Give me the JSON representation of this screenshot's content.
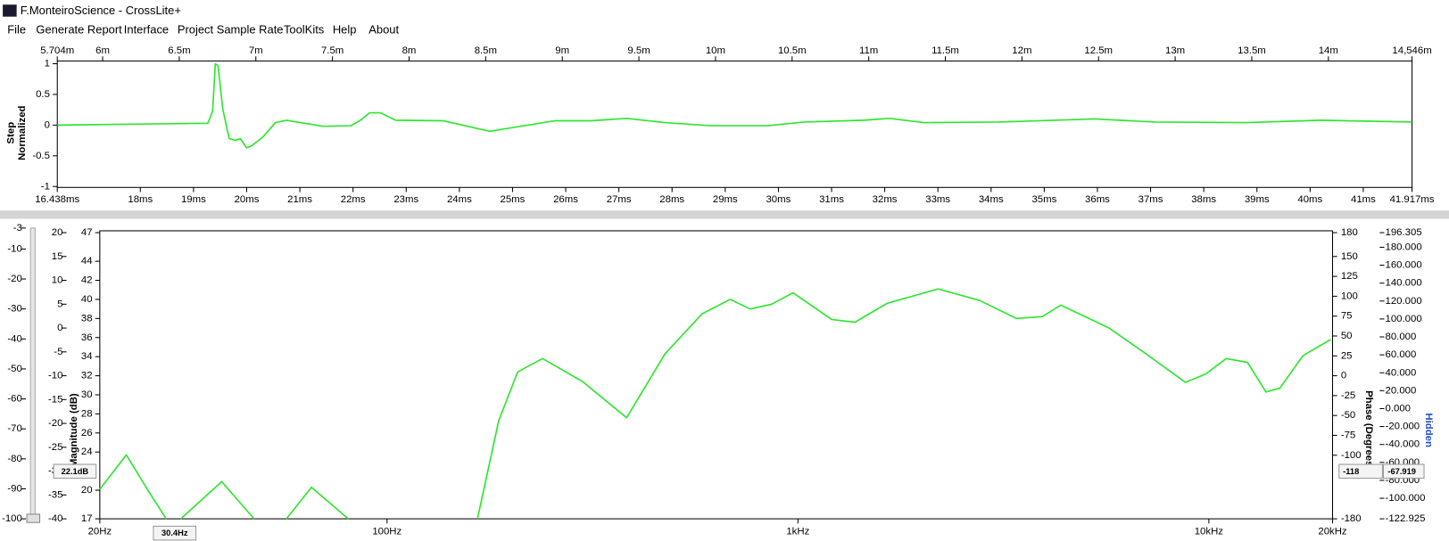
{
  "window": {
    "title": "F.MonteiroScience - CrossLite+"
  },
  "menu": [
    "File",
    "Generate Report",
    "Interface",
    "Project Sample Rate",
    "ToolKits",
    "Help",
    "About"
  ],
  "chart_data": [
    {
      "type": "line",
      "ylabel": [
        "Step",
        "Normalized"
      ],
      "x": [
        16.438,
        19.27,
        19.36,
        19.41,
        19.46,
        19.55,
        19.67,
        19.79,
        19.88,
        20.0,
        20.09,
        20.31,
        20.54,
        20.75,
        21.01,
        21.44,
        21.96,
        22.14,
        22.31,
        22.52,
        22.8,
        23.7,
        24.57,
        25.79,
        26.48,
        27.14,
        27.87,
        28.74,
        29.79,
        30.48,
        31.61,
        32.09,
        32.74,
        34.13,
        35.95,
        37.08,
        38.82,
        40.21,
        41.917
      ],
      "series": [
        {
          "color": "#2ee62e",
          "values": [
            0,
            0.03,
            0.23,
            1.0,
            0.97,
            0.26,
            -0.22,
            -0.25,
            -0.22,
            -0.37,
            -0.34,
            -0.19,
            0.04,
            0.08,
            0.04,
            -0.02,
            -0.01,
            0.08,
            0.2,
            0.2,
            0.08,
            0.07,
            -0.1,
            0.07,
            0.07,
            0.11,
            0.04,
            -0.01,
            -0.01,
            0.05,
            0.08,
            0.11,
            0.04,
            0.05,
            0.1,
            0.05,
            0.04,
            0.08,
            0.05
          ]
        }
      ],
      "xlim": [
        16.438,
        41.917
      ],
      "xticks": [
        {
          "value": 16.438,
          "label": "16.438ms"
        },
        {
          "value": 18,
          "label": "18ms"
        },
        {
          "value": 19,
          "label": "19ms"
        },
        {
          "value": 20,
          "label": "20ms"
        },
        {
          "value": 21,
          "label": "21ms"
        },
        {
          "value": 22,
          "label": "22ms"
        },
        {
          "value": 23,
          "label": "23ms"
        },
        {
          "value": 24,
          "label": "24ms"
        },
        {
          "value": 25,
          "label": "25ms"
        },
        {
          "value": 26,
          "label": "26ms"
        },
        {
          "value": 27,
          "label": "27ms"
        },
        {
          "value": 28,
          "label": "28ms"
        },
        {
          "value": 29,
          "label": "29ms"
        },
        {
          "value": 30,
          "label": "30ms"
        },
        {
          "value": 31,
          "label": "31ms"
        },
        {
          "value": 32,
          "label": "32ms"
        },
        {
          "value": 33,
          "label": "33ms"
        },
        {
          "value": 34,
          "label": "34ms"
        },
        {
          "value": 35,
          "label": "35ms"
        },
        {
          "value": 36,
          "label": "36ms"
        },
        {
          "value": 37,
          "label": "37ms"
        },
        {
          "value": 38,
          "label": "38ms"
        },
        {
          "value": 39,
          "label": "39ms"
        },
        {
          "value": 40,
          "label": "40ms"
        },
        {
          "value": 41,
          "label": "41ms"
        },
        {
          "value": 41.917,
          "label": "41.917ms"
        }
      ],
      "x2lim": [
        5.704,
        14.546
      ],
      "x2ticks": [
        {
          "value": 5.704,
          "label": "5.704m"
        },
        {
          "value": 6,
          "label": "6m"
        },
        {
          "value": 6.5,
          "label": "6.5m"
        },
        {
          "value": 7,
          "label": "7m"
        },
        {
          "value": 7.5,
          "label": "7.5m"
        },
        {
          "value": 8,
          "label": "8m"
        },
        {
          "value": 8.5,
          "label": "8.5m"
        },
        {
          "value": 9,
          "label": "9m"
        },
        {
          "value": 9.5,
          "label": "9.5m"
        },
        {
          "value": 10,
          "label": "10m"
        },
        {
          "value": 10.5,
          "label": "10.5m"
        },
        {
          "value": 11,
          "label": "11m"
        },
        {
          "value": 11.5,
          "label": "11.5m"
        },
        {
          "value": 12,
          "label": "12m"
        },
        {
          "value": 12.5,
          "label": "12.5m"
        },
        {
          "value": 13,
          "label": "13m"
        },
        {
          "value": 13.5,
          "label": "13.5m"
        },
        {
          "value": 14,
          "label": "14m"
        },
        {
          "value": 14.546,
          "label": "14,546m"
        }
      ],
      "ylim": [
        -1,
        1
      ],
      "yticks": [
        1,
        0.5,
        0,
        -0.5,
        -1
      ]
    },
    {
      "type": "line",
      "xscale": "log",
      "ylabel": "Magnitude (dB)",
      "y2label": "Phase (Degrees)",
      "y5label": "Hidden",
      "x": [
        20,
        23.2,
        26.1,
        29,
        30,
        31.5,
        39.6,
        47.5,
        52,
        56.9,
        65.5,
        80.5,
        120,
        166,
        187,
        208,
        239,
        299,
        383,
        475,
        585,
        684,
        765,
        863,
        973,
        1208,
        1375,
        1649,
        2193,
        2767,
        3405,
        3935,
        4364,
        5716,
        7031,
        8776,
        9842,
        11020,
        12420,
        13770,
        14890,
        16950,
        19790
      ],
      "series": [
        {
          "color": "#2ee62e",
          "values": [
            20.1,
            23.7,
            20.1,
            17,
            null,
            17,
            20.9,
            17,
            null,
            17,
            20.3,
            17,
            null,
            17,
            27.3,
            32.4,
            33.8,
            31.4,
            27.6,
            34.3,
            38.5,
            40,
            39,
            39.5,
            40.7,
            37.9,
            37.6,
            39.6,
            41.1,
            39.9,
            38,
            38.2,
            39.4,
            37,
            34.3,
            31.3,
            32.2,
            33.8,
            33.4,
            30.3,
            30.7,
            34.1,
            35.8
          ]
        }
      ],
      "xlim": [
        20,
        20000
      ],
      "xticks": [
        {
          "value": 20,
          "label": "20Hz"
        },
        {
          "value": 100,
          "label": "100Hz"
        },
        {
          "value": 1000,
          "label": "1kHz"
        },
        {
          "value": 10000,
          "label": "10kHz"
        },
        {
          "value": 20000,
          "label": "20kHz"
        }
      ],
      "ylim": [
        17,
        47
      ],
      "yticks": [
        47,
        44,
        42,
        40,
        38,
        36,
        34,
        32,
        30,
        28,
        26,
        24,
        20,
        17
      ],
      "y2lim": [
        -180,
        180
      ],
      "y2ticks": [
        180,
        150,
        125,
        100,
        75,
        50,
        25,
        0,
        -25,
        -50,
        -75,
        -100,
        -180
      ],
      "y3lim": [
        -100,
        -3
      ],
      "y3ticks": [
        -3,
        -10,
        -20,
        -30,
        -40,
        -50,
        -60,
        -70,
        -80,
        -90,
        -100
      ],
      "y4lim": [
        -40,
        20
      ],
      "y4ticks": [
        20,
        15,
        10,
        5,
        0,
        -5,
        -10,
        -15,
        -20,
        -25,
        -30,
        -35,
        -40
      ],
      "y5lim": [
        -122.925,
        196.305
      ],
      "y5ticks": [
        196.305,
        {
          "value": 180,
          "label": "180.000"
        },
        {
          "value": 160,
          "label": "160.000"
        },
        {
          "value": 140,
          "label": "140.000"
        },
        {
          "value": 120,
          "label": "120.000"
        },
        {
          "value": 100,
          "label": "100.000"
        },
        {
          "value": 80,
          "label": "80.000"
        },
        {
          "value": 60,
          "label": "60.000"
        },
        {
          "value": 40,
          "label": "40.000"
        },
        {
          "value": 20,
          "label": "20.000"
        },
        {
          "value": 0,
          "label": "0.000"
        },
        {
          "value": -20,
          "label": "-20.000"
        },
        {
          "value": -40,
          "label": "-40.000"
        },
        {
          "value": -60,
          "label": "-60.000"
        },
        {
          "value": -80,
          "label": "-80.000"
        },
        {
          "value": -100,
          "label": "-100.000"
        },
        -122.925
      ]
    }
  ],
  "readouts": {
    "magnitude": "22.1dB",
    "frequency": "30.4Hz",
    "phase": "-118",
    "hidden": "-67.919"
  }
}
